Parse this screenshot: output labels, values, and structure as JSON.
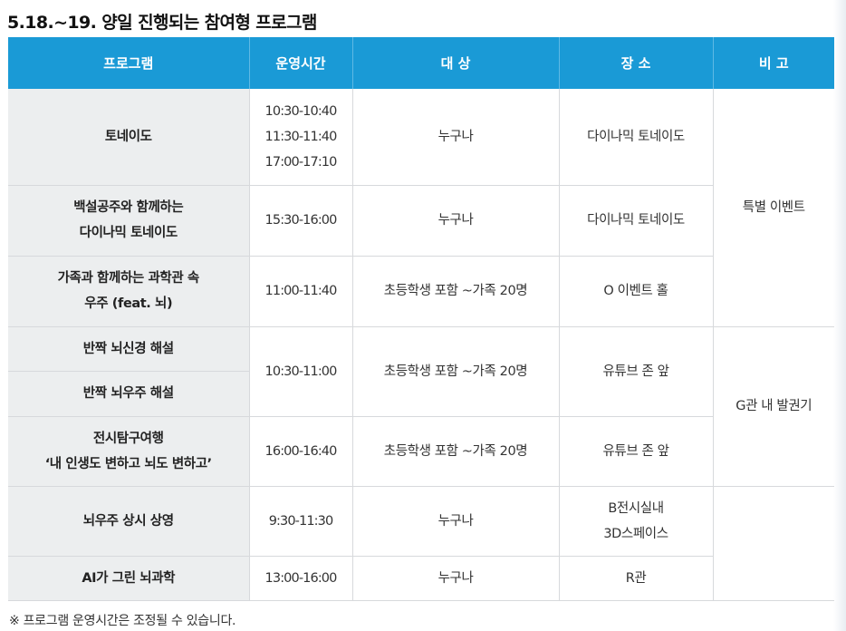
{
  "title": "5.18.~19. 양일 진행되는 참여형 프로그램",
  "header": {
    "program": "프로그램",
    "time": "운영시간",
    "target": "대 상",
    "place": "장 소",
    "note": "비 고"
  },
  "rows": [
    {
      "program": [
        "토네이도"
      ],
      "times": [
        "10:30-10:40",
        "11:30-11:40",
        "17:00-17:10"
      ],
      "target": "누구나",
      "place": [
        "다이나믹 토네이도"
      ]
    },
    {
      "program": [
        "백설공주와 함께하는",
        "다이나믹 토네이도"
      ],
      "times": [
        "15:30-16:00"
      ],
      "target": "누구나",
      "place": [
        "다이나믹 토네이도"
      ]
    },
    {
      "program": [
        "가족과 함께하는 과학관 속",
        "우주 (feat. 뇌)"
      ],
      "times": [
        "11:00-11:40"
      ],
      "target": "초등학생 포함 ~가족 20명",
      "place": [
        "O 이벤트 홀"
      ]
    },
    {
      "program": [
        "반짝 뇌신경 해설"
      ]
    },
    {
      "program": [
        "반짝 뇌우주 해설"
      ]
    },
    {
      "program": [
        "전시탐구여행",
        "‘내 인생도 변하고 뇌도 변하고’"
      ],
      "times": [
        "16:00-16:40"
      ],
      "target": "초등학생 포함 ~가족 20명",
      "place": [
        "유튜브 존 앞"
      ]
    },
    {
      "program": [
        "뇌우주 상시 상영"
      ],
      "times": [
        "9:30-11:30"
      ],
      "target": "누구나",
      "place": [
        "B전시실내",
        "3D스페이스"
      ]
    },
    {
      "program": [
        "AI가 그린 뇌과학"
      ],
      "times": [
        "13:00-16:00"
      ],
      "target": "누구나",
      "place": [
        "R관"
      ]
    }
  ],
  "merged": {
    "haesul_times": [
      "10:30-11:00"
    ],
    "haesul_target": "초등학생 포함 ~가족 20명",
    "haesul_place": [
      "유튜브 존 앞"
    ],
    "special_event": "특별 이벤트",
    "g_ticket": "G관 내 발권기"
  },
  "footnote": "※ 프로그램 운영시간은 조정될 수 있습니다."
}
